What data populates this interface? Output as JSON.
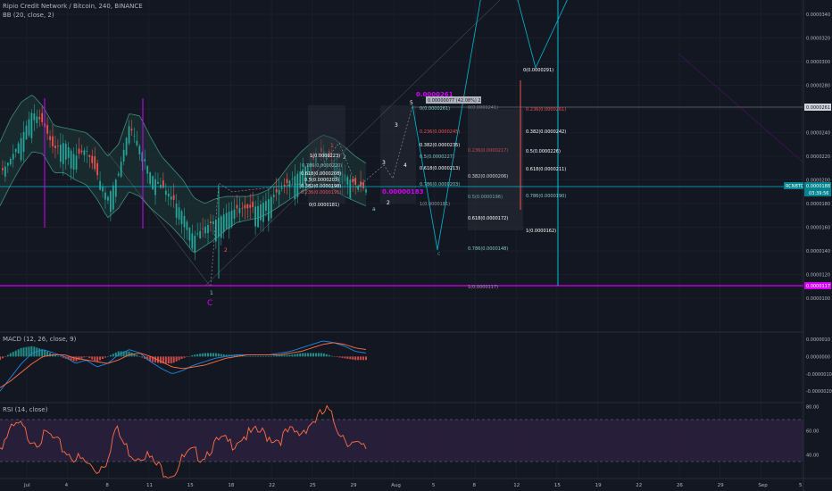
{
  "header": {
    "title": "Ripio Credit Network / Bitcoin, 240, BINANCE",
    "bb": "BB (20, close, 2)",
    "macd": "MACD (12, 26, close, 9)",
    "rsi": "RSI (14, close)"
  },
  "colors": {
    "background": "#131722",
    "up": "#26a69a",
    "down": "#ef5350",
    "bb_fill": "#1e3b36",
    "bb_line": "#3d8d7f",
    "magenta": "#d500f9",
    "teal": "#00bcd4",
    "rsi_fill": "#2a1f3d",
    "rsi_line": "#ff7043",
    "macd_line": "#1e88e5"
  },
  "chart_data": [
    {
      "type": "candlestick",
      "pane": "price",
      "x_ticks": [
        "Jul",
        "4",
        "8",
        "11",
        "15",
        "18",
        "22",
        "25",
        "29",
        "Aug",
        "5",
        "8",
        "12",
        "15",
        "19",
        "22",
        "26",
        "29",
        "Sep",
        "5"
      ],
      "y_ticks": [
        "0.0000340",
        "0.0000320",
        "0.0000300",
        "0.0000280",
        "0.0000260",
        "0.0000240",
        "0.0000220",
        "0.0000200",
        "0.0000180",
        "0.0000160",
        "0.0000140",
        "0.0000120",
        "0.0000100"
      ],
      "ylim": [
        9.1e-06,
        3.46e-05
      ],
      "badges": [
        {
          "text": "0.0000261",
          "kind": "level"
        },
        {
          "text": "RCNBTC",
          "kind": "symbol"
        },
        {
          "text": "0.0000188",
          "kind": "price"
        },
        {
          "text": "03:39:56",
          "kind": "countdown"
        },
        {
          "text": "0.0000117",
          "kind": "magenta"
        }
      ],
      "price_path": [
        2.05e-05,
        2.18e-05,
        2.36e-05,
        2.58e-05,
        2.48e-05,
        2.26e-05,
        2.32e-05,
        2.2e-05,
        2.26e-05,
        2.05e-05,
        1.85e-05,
        2.05e-05,
        2.46e-05,
        2.28e-05,
        2.05e-05,
        1.95e-05,
        1.85e-05,
        1.72e-05,
        1.52e-05,
        1.6e-05,
        1.66e-05,
        1.72e-05,
        1.76e-05,
        1.76e-05,
        1.78e-05,
        1.84e-05,
        1.92e-05,
        2e-05,
        2.08e-05,
        2.16e-05,
        2.25e-05,
        2.15e-05,
        2.05e-05,
        1.96e-05,
        1.92e-05
      ],
      "bb_upper_path": [
        2.32e-05,
        2.52e-05,
        2.66e-05,
        2.72e-05,
        2.62e-05,
        2.46e-05,
        2.44e-05,
        2.42e-05,
        2.4e-05,
        2.32e-05,
        2.2e-05,
        2.3e-05,
        2.56e-05,
        2.54e-05,
        2.36e-05,
        2.2e-05,
        2.1e-05,
        2e-05,
        1.85e-05,
        1.8e-05,
        1.84e-05,
        1.86e-05,
        1.86e-05,
        1.86e-05,
        1.88e-05,
        1.92e-05,
        2.02e-05,
        2.14e-05,
        2.24e-05,
        2.32e-05,
        2.38e-05,
        2.35e-05,
        2.28e-05,
        2.2e-05,
        2.14e-05
      ],
      "bb_lower_path": [
        1.78e-05,
        1.96e-05,
        2.12e-05,
        2.24e-05,
        2.22e-05,
        2.06e-05,
        2.06e-05,
        2e-05,
        1.96e-05,
        1.84e-05,
        1.68e-05,
        1.76e-05,
        1.9e-05,
        1.86e-05,
        1.76e-05,
        1.68e-05,
        1.6e-05,
        1.5e-05,
        1.38e-05,
        1.44e-05,
        1.5e-05,
        1.58e-05,
        1.64e-05,
        1.66e-05,
        1.68e-05,
        1.72e-05,
        1.78e-05,
        1.84e-05,
        1.9e-05,
        1.94e-05,
        1.98e-05,
        1.92e-05,
        1.86e-05,
        1.82e-05,
        1.78e-05
      ],
      "fib_labels": [
        "1(0.0000223)",
        "0.786(0.0000220)",
        "0.618(0.0000208)",
        "0.5(0.0000203)",
        "0.382(0.0000198)",
        "0.236(0.0000191)",
        "0(0.0000181)",
        "0.0000261",
        "0.00000077 (42.08%) 27",
        "0(0.0000261)",
        "0.236(0.0000245)",
        "0.382(0.0000235)",
        "0.5(0.0000227)",
        "0.618(0.0000213)",
        "0.786(0.0000203)",
        "1(0.0000181)",
        "0.618(0.0000172)",
        "0.786(0.0000148)",
        "1(0.0000117)",
        "0.00000183",
        "0(0.0000291)",
        "0.236(0.0000261)",
        "0.382(0.0000242)",
        "0.5(0.0000226)",
        "0.618(0.0000211)",
        "0.786(0.0000190)",
        "1(0.0000162)",
        "0.382(0.0000206)",
        "0.5(0.0000196)",
        "0.236(0.0000217)",
        "0(0.0000241)"
      ],
      "wave_labels": [
        "1",
        "2",
        "C",
        "1",
        "2",
        "3",
        "4",
        "5",
        "2",
        "3",
        "4",
        "5",
        "a",
        "b",
        "c"
      ]
    },
    {
      "type": "line",
      "pane": "macd",
      "title": "MACD (12, 26, close, 9)",
      "y_ticks": [
        "0.0000010",
        "0.0000000",
        "-0.0000010",
        "-0.0000020"
      ],
      "ylim": [
        -2.3e-06,
        1.1e-06
      ],
      "macd_path": [
        -2e-06,
        -1.2e-06,
        -4e-07,
        2e-07,
        4e-07,
        2e-07,
        0.0,
        -4e-07,
        -2e-07,
        -6e-07,
        -4e-07,
        1e-07,
        4e-07,
        2e-07,
        -3e-07,
        -7e-07,
        -1e-06,
        -8e-07,
        -5e-07,
        -3e-07,
        -1e-07,
        0.0,
        1e-07,
        1e-07,
        1e-07,
        1e-07,
        2e-07,
        3e-07,
        5e-07,
        7e-07,
        9e-07,
        8e-07,
        6e-07,
        3e-07,
        2e-07
      ],
      "signal_path": [
        -1.8e-06,
        -1.4e-06,
        -9e-07,
        -4e-07,
        0.0,
        1e-07,
        1e-07,
        -1e-07,
        -2e-07,
        -3e-07,
        -4e-07,
        -2e-07,
        1e-07,
        2e-07,
        0.0,
        -3e-07,
        -6e-07,
        -7e-07,
        -6e-07,
        -5e-07,
        -3e-07,
        -1e-07,
        0.0,
        1e-07,
        1e-07,
        1e-07,
        1e-07,
        2e-07,
        3e-07,
        5e-07,
        7e-07,
        8e-07,
        7e-07,
        5e-07,
        4e-07
      ]
    },
    {
      "type": "line",
      "pane": "rsi",
      "title": "RSI (14, close)",
      "y_ticks": [
        "80.00",
        "60.00",
        "40.00"
      ],
      "ylim": [
        22,
        82
      ],
      "bands": [
        70,
        30
      ],
      "rsi_path": [
        50,
        62,
        68,
        58,
        55,
        60,
        52,
        45,
        40,
        36,
        30,
        38,
        65,
        50,
        42,
        45,
        36,
        30,
        28,
        40,
        45,
        42,
        50,
        55,
        52,
        58,
        60,
        62,
        58,
        56,
        62,
        60,
        68,
        74,
        80,
        66,
        56,
        50,
        48
      ]
    }
  ]
}
